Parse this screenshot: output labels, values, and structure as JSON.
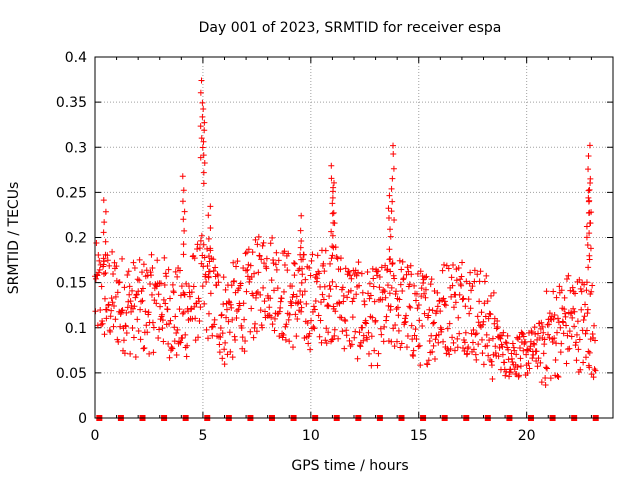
{
  "chart_data": {
    "type": "scatter",
    "title": "Day 001 of 2023, SRMTID for receiver espa",
    "xlabel": "GPS time / hours",
    "ylabel": "SRMTID / TECUs",
    "xlim": [
      0,
      24
    ],
    "ylim": [
      0,
      0.4
    ],
    "xticks": [
      0,
      5,
      10,
      15,
      20
    ],
    "xtick_labels": [
      "0",
      "5",
      "10",
      "15",
      "20"
    ],
    "yticks": [
      0,
      0.05,
      0.1,
      0.15,
      0.2,
      0.25,
      0.3,
      0.35,
      0.4
    ],
    "ytick_labels": [
      "0",
      "0.05",
      "0.1",
      "0.15",
      "0.2",
      "0.25",
      "0.3",
      "0.35",
      "0.4"
    ],
    "grid": true,
    "marker": "+",
    "color": "#ff0000",
    "baseline_marker": "square",
    "baseline_markers_x": [
      0.2,
      1.2,
      2.2,
      3.2,
      4.2,
      5.2,
      6.2,
      7.2,
      8.2,
      9.2,
      10.2,
      11.2,
      12.2,
      13.2,
      14.2,
      15.2,
      16.2,
      17.2,
      18.2,
      19.2,
      20.2,
      21.2,
      22.2,
      23.2
    ],
    "trend": [
      {
        "x": 0,
        "y": 0.14
      },
      {
        "x": 1,
        "y": 0.13
      },
      {
        "x": 2,
        "y": 0.12
      },
      {
        "x": 3,
        "y": 0.13
      },
      {
        "x": 4,
        "y": 0.11
      },
      {
        "x": 5,
        "y": 0.15
      },
      {
        "x": 6,
        "y": 0.11
      },
      {
        "x": 7,
        "y": 0.13
      },
      {
        "x": 8,
        "y": 0.16
      },
      {
        "x": 9,
        "y": 0.13
      },
      {
        "x": 10,
        "y": 0.13
      },
      {
        "x": 11,
        "y": 0.14
      },
      {
        "x": 12,
        "y": 0.12
      },
      {
        "x": 13,
        "y": 0.11
      },
      {
        "x": 14,
        "y": 0.13
      },
      {
        "x": 15,
        "y": 0.11
      },
      {
        "x": 16,
        "y": 0.12
      },
      {
        "x": 17,
        "y": 0.13
      },
      {
        "x": 18,
        "y": 0.11
      },
      {
        "x": 19,
        "y": 0.07
      },
      {
        "x": 20,
        "y": 0.07
      },
      {
        "x": 21,
        "y": 0.09
      },
      {
        "x": 22,
        "y": 0.11
      },
      {
        "x": 23,
        "y": 0.1
      }
    ],
    "peaks": [
      {
        "x": 0.45,
        "y": 0.245
      },
      {
        "x": 4.1,
        "y": 0.27
      },
      {
        "x": 4.95,
        "y": 0.375
      },
      {
        "x": 5.05,
        "y": 0.345
      },
      {
        "x": 5.3,
        "y": 0.24
      },
      {
        "x": 9.55,
        "y": 0.225
      },
      {
        "x": 11.0,
        "y": 0.28
      },
      {
        "x": 11.05,
        "y": 0.265
      },
      {
        "x": 13.8,
        "y": 0.305
      },
      {
        "x": 13.65,
        "y": 0.25
      },
      {
        "x": 22.9,
        "y": 0.305
      },
      {
        "x": 22.95,
        "y": 0.265
      },
      {
        "x": 22.85,
        "y": 0.24
      }
    ]
  }
}
